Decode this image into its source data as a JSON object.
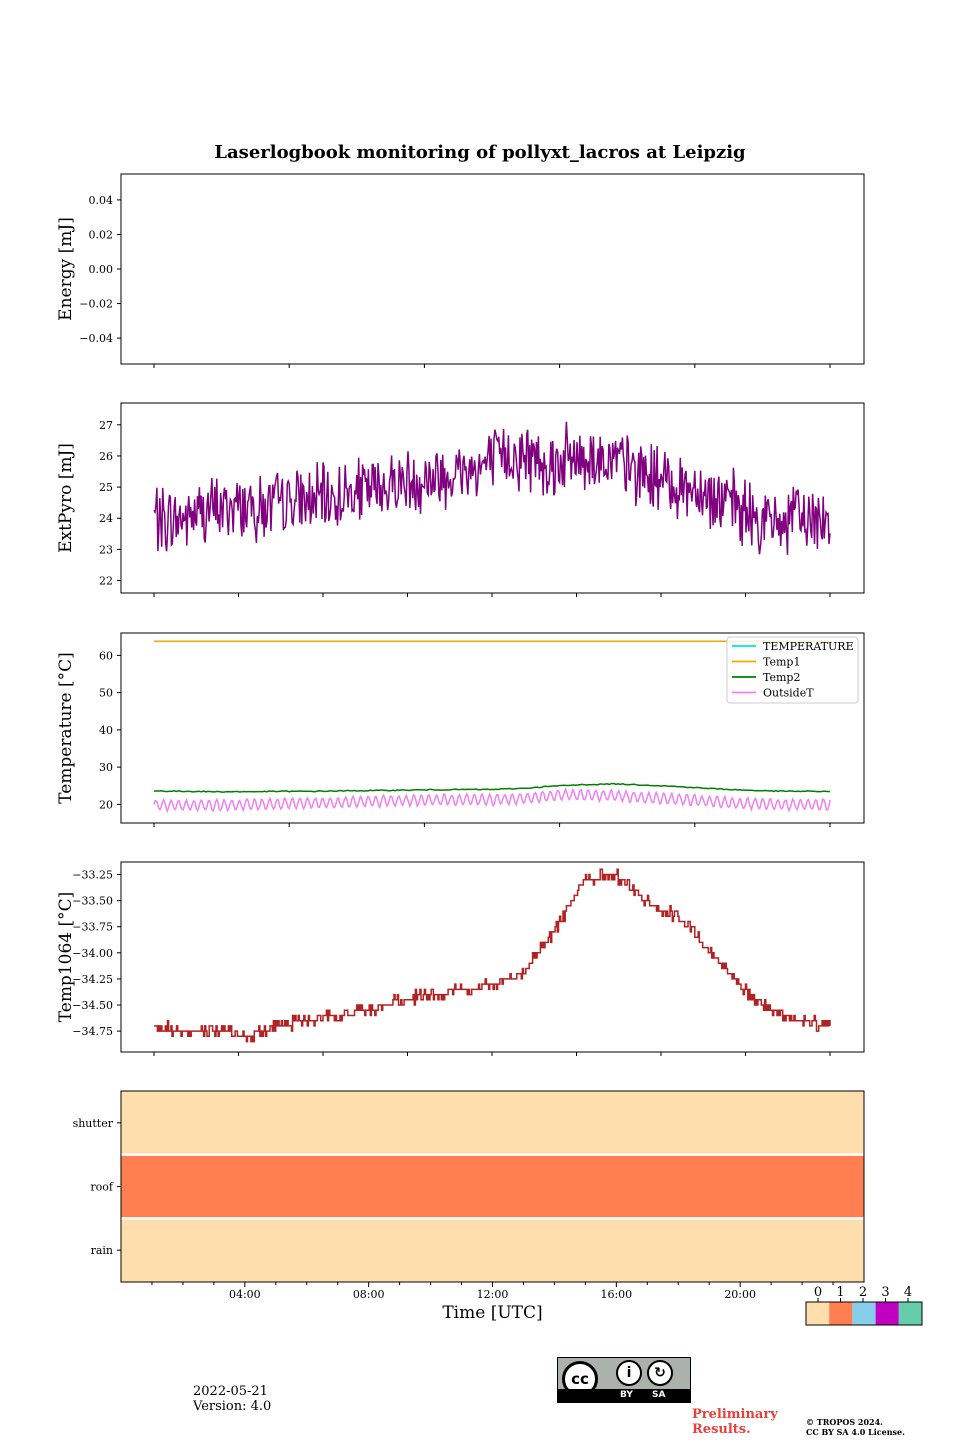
{
  "title": "Laserlogbook monitoring of pollyxt_lacros at Leipzig",
  "footer": {
    "date": "2022-05-21",
    "version": "Version: 4.0",
    "preliminary_line1": "Preliminary",
    "preliminary_line2": "Results.",
    "copyright_line1": "© TROPOS 2024.",
    "copyright_line2": "CC BY SA 4.0 License.",
    "license_badge": {
      "main": "cc",
      "by": "BY",
      "sa": "SA"
    }
  },
  "colors": {
    "extpyro": "#800080",
    "temperature": "#00e5ee",
    "temp1": "#ffa500",
    "temp2": "#008000",
    "outsidet": "#ee82ee",
    "temp1064": "#b22222",
    "status": [
      "#ffdead",
      "#ff7f50",
      "#87ceeb",
      "#c000c0",
      "#66cdaa"
    ]
  },
  "chart_data": [
    {
      "type": "line",
      "ylabel": "Energy [mJ]",
      "yticks": [
        "0.04",
        "0.02",
        "0.00",
        "−0.02",
        "−0.04"
      ],
      "ytick_values": [
        0.04,
        0.02,
        0.0,
        -0.02,
        -0.04
      ],
      "ylim": [
        -0.055,
        0.055
      ],
      "series": []
    },
    {
      "type": "line",
      "ylabel": "ExtPyro [mJ]",
      "yticks": [
        "27",
        "26",
        "25",
        "24",
        "23",
        "22"
      ],
      "ytick_values": [
        27,
        26,
        25,
        24,
        23,
        22
      ],
      "ylim": [
        21.6,
        27.7
      ],
      "series": [
        {
          "color": "#800080",
          "x": [
            1.0,
            1.5,
            2.0,
            2.5,
            3.0,
            3.5,
            4.0,
            4.5,
            5.0,
            5.5,
            6.0,
            6.5,
            7.0,
            7.5,
            8.0,
            8.5,
            9.0,
            9.5,
            10.0,
            10.5,
            11.0,
            11.5,
            12.0,
            12.5,
            13.0,
            13.5,
            14.0,
            14.5,
            15.0,
            15.5,
            16.0,
            16.5,
            17.0,
            17.5,
            18.0,
            18.5,
            19.0,
            19.5,
            20.0,
            20.5,
            21.0,
            21.5,
            22.0,
            22.5,
            23.0
          ],
          "y": [
            24.1,
            23.9,
            24.0,
            24.2,
            24.3,
            24.4,
            24.4,
            24.3,
            24.4,
            24.5,
            24.5,
            24.6,
            24.7,
            24.8,
            24.9,
            25.0,
            25.2,
            25.2,
            25.3,
            25.4,
            25.5,
            25.6,
            25.8,
            26.0,
            26.0,
            25.9,
            25.8,
            25.9,
            26.0,
            25.9,
            25.8,
            25.6,
            25.4,
            25.2,
            25.1,
            25.0,
            24.8,
            24.6,
            24.3,
            24.0,
            23.8,
            23.9,
            24.0,
            24.0,
            24.0
          ],
          "noise_amplitude": 1.3
        }
      ]
    },
    {
      "type": "line",
      "ylabel": "Temperature [°C]",
      "yticks": [
        "60",
        "50",
        "40",
        "30",
        "20"
      ],
      "ytick_values": [
        60,
        50,
        40,
        30,
        20
      ],
      "ylim": [
        15,
        66
      ],
      "legend": {
        "location": "top-right",
        "entries": [
          "TEMPERATURE",
          "Temp1",
          "Temp2",
          "OutsideT"
        ]
      },
      "series": [
        {
          "name": "TEMPERATURE",
          "color": "#00e5ee",
          "x": [],
          "y": []
        },
        {
          "name": "Temp1",
          "color": "#ffa500",
          "x": [
            1.0,
            23.0
          ],
          "y": [
            63.8,
            63.8
          ]
        },
        {
          "name": "Temp2",
          "color": "#008000",
          "x": [
            1,
            2,
            3,
            4,
            5,
            6,
            7,
            8,
            9,
            10,
            11,
            12,
            13,
            14,
            15,
            16,
            17,
            18,
            19,
            20,
            21,
            22,
            23
          ],
          "y": [
            23.6,
            23.5,
            23.4,
            23.4,
            23.5,
            23.5,
            23.6,
            23.7,
            23.8,
            23.9,
            24.0,
            24.0,
            24.3,
            24.9,
            25.3,
            25.5,
            25.2,
            24.8,
            24.3,
            23.9,
            23.6,
            23.5,
            23.5
          ]
        },
        {
          "name": "OutsideT",
          "color": "#ee82ee",
          "x": [
            1,
            2,
            3,
            4,
            5,
            6,
            7,
            8,
            9,
            10,
            11,
            12,
            13,
            14,
            15,
            16,
            17,
            18,
            19,
            20,
            21,
            22,
            23
          ],
          "y": [
            19.8,
            19.7,
            19.8,
            19.9,
            20.1,
            20.3,
            20.5,
            20.8,
            21.0,
            21.2,
            21.3,
            21.2,
            21.6,
            22.4,
            22.6,
            22.3,
            21.8,
            21.4,
            20.8,
            20.3,
            20.0,
            19.9,
            20.0
          ],
          "oscillation_amplitude": 1.4
        }
      ]
    },
    {
      "type": "line",
      "ylabel": "Temp1064 [°C]",
      "yticks": [
        "−33.25",
        "−33.50",
        "−33.75",
        "−34.00",
        "−34.25",
        "−34.50",
        "−34.75"
      ],
      "ytick_values": [
        -33.25,
        -33.5,
        -33.75,
        -34.0,
        -34.25,
        -34.5,
        -34.75
      ],
      "ylim": [
        -34.95,
        -33.13
      ],
      "series": [
        {
          "color": "#b22222",
          "x": [
            1,
            2,
            3,
            4,
            5,
            6,
            7,
            8,
            9,
            10,
            11,
            12,
            13,
            14,
            15,
            16,
            17,
            18,
            19,
            20,
            21,
            22,
            23
          ],
          "y": [
            -34.7,
            -34.75,
            -34.75,
            -34.8,
            -34.7,
            -34.65,
            -34.6,
            -34.55,
            -34.45,
            -34.4,
            -34.35,
            -34.3,
            -34.2,
            -33.8,
            -33.3,
            -33.25,
            -33.5,
            -33.65,
            -33.95,
            -34.3,
            -34.55,
            -34.65,
            -34.7
          ],
          "step": 0.05
        }
      ]
    },
    {
      "type": "heatmap",
      "yticks": [
        "shutter",
        "roof",
        "rain"
      ],
      "xlabel": "Time [UTC]",
      "xticks": [
        "04:00",
        "08:00",
        "12:00",
        "16:00",
        "20:00"
      ],
      "xtick_values": [
        4,
        8,
        12,
        16,
        20
      ],
      "xlim": [
        0,
        24
      ],
      "rows": [
        0,
        1,
        0
      ],
      "colorbar": {
        "ticks": [
          "0",
          "1",
          "2",
          "3",
          "4"
        ],
        "values": [
          0,
          1,
          2,
          3,
          4
        ]
      }
    }
  ]
}
